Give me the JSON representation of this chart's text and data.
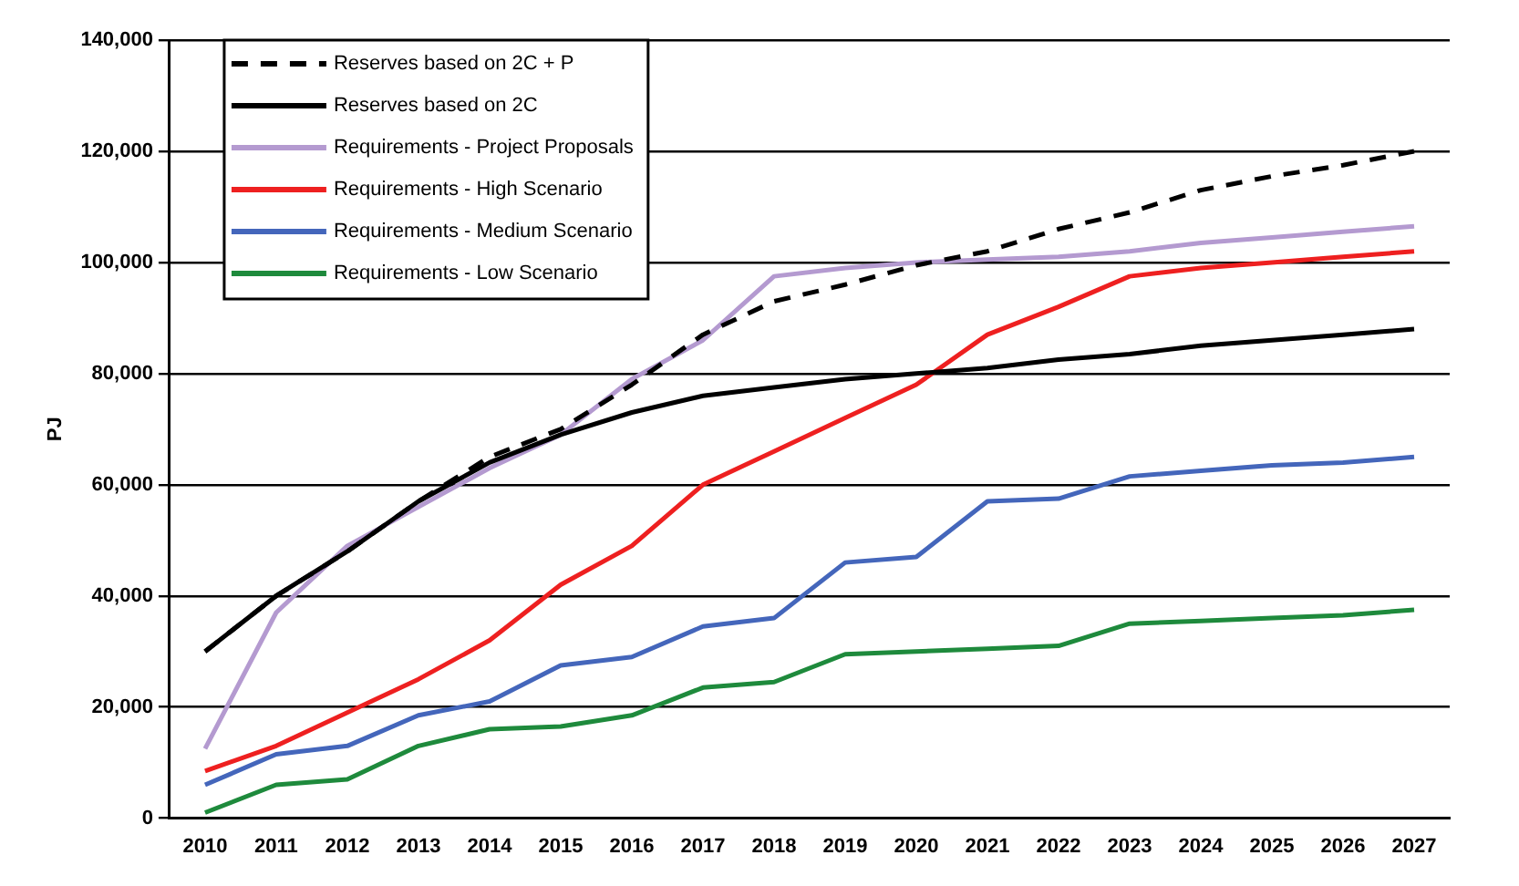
{
  "chart_data": {
    "type": "line",
    "ylabel": "PJ",
    "categories": [
      "2010",
      "2011",
      "2012",
      "2013",
      "2014",
      "2015",
      "2016",
      "2017",
      "2018",
      "2019",
      "2020",
      "2021",
      "2022",
      "2023",
      "2024",
      "2025",
      "2026",
      "2027"
    ],
    "ylim": [
      0,
      140000
    ],
    "yticks": [
      {
        "value": 0,
        "label": "0"
      },
      {
        "value": 20000,
        "label": "20,000"
      },
      {
        "value": 40000,
        "label": "40,000"
      },
      {
        "value": 60000,
        "label": "60,000"
      },
      {
        "value": 80000,
        "label": "80,000"
      },
      {
        "value": 100000,
        "label": "100,000"
      },
      {
        "value": 120000,
        "label": "120,000"
      },
      {
        "value": 140000,
        "label": "140,000"
      }
    ],
    "grid": "y",
    "legend": "top left",
    "marker": "none",
    "series": [
      {
        "name": "Reserves based on 2C + P",
        "color": "#000000",
        "line_style": "dashed",
        "values": [
          30000,
          40000,
          48000,
          57000,
          65000,
          70000,
          78000,
          87000,
          93000,
          96000,
          99500,
          102000,
          106000,
          109000,
          113000,
          115500,
          117500,
          120000
        ]
      },
      {
        "name": "Reserves based on 2C",
        "color": "#000000",
        "line_style": "solid",
        "values": [
          30000,
          40000,
          48000,
          57000,
          64000,
          69000,
          73000,
          76000,
          77500,
          79000,
          80000,
          81000,
          82500,
          83500,
          85000,
          86000,
          87000,
          88000
        ]
      },
      {
        "name": "Requirements - Project Proposals",
        "color": "#b49ad0",
        "line_style": "solid",
        "values": [
          12500,
          37000,
          49000,
          56000,
          63000,
          69000,
          79000,
          86000,
          97500,
          99000,
          100000,
          100500,
          101000,
          102000,
          103500,
          104500,
          105500,
          106500
        ]
      },
      {
        "name": "Requirements - High Scenario",
        "color": "#ee2020",
        "line_style": "solid",
        "values": [
          8500,
          13000,
          19000,
          25000,
          32000,
          42000,
          49000,
          60000,
          66000,
          72000,
          78000,
          87000,
          92000,
          97500,
          99000,
          100000,
          101000,
          102000
        ]
      },
      {
        "name": "Requirements - Medium Scenario",
        "color": "#4466bb",
        "line_style": "solid",
        "values": [
          6000,
          11500,
          13000,
          18500,
          21000,
          27500,
          29000,
          34500,
          36000,
          46000,
          47000,
          57000,
          57500,
          61500,
          62500,
          63500,
          64000,
          65000
        ]
      },
      {
        "name": "Requirements - Low Scenario",
        "color": "#1e8a3c",
        "line_style": "solid",
        "values": [
          1000,
          6000,
          7000,
          13000,
          16000,
          16500,
          18500,
          23500,
          24500,
          29500,
          30000,
          30500,
          31000,
          35000,
          35500,
          36000,
          36500,
          37500
        ]
      }
    ]
  }
}
